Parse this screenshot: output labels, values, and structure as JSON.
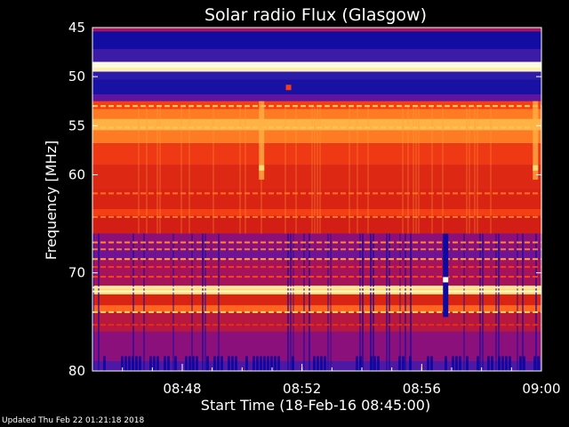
{
  "footer": {
    "updated": "Updated Thu Feb 22 01:21:18 2018"
  },
  "colors": {
    "background": "#000000",
    "axis": "#ffffff",
    "text": "#ffffff"
  },
  "chart_data": {
    "type": "heatmap",
    "title": "Solar radio Flux (Glasgow)",
    "xlabel": "Start Time (18-Feb-16 08:45:00)",
    "ylabel": "Frequency [MHz]",
    "x_range": [
      "08:45",
      "09:00"
    ],
    "x_ticks": [
      {
        "label": "08:48",
        "minutes": 3
      },
      {
        "label": "08:52",
        "minutes": 7
      },
      {
        "label": "08:56",
        "minutes": 11
      },
      {
        "label": "09:00",
        "minutes": 15
      }
    ],
    "y_range": [
      45,
      80
    ],
    "y_ticks": [
      45,
      50,
      55,
      60,
      70,
      80
    ],
    "colormap": [
      "#00009c",
      "#2d1eaa",
      "#6414a0",
      "#9b0f6e",
      "#d21e14",
      "#ff4614",
      "#ff8c28",
      "#ffd25a",
      "#ffffe6"
    ],
    "bands": [
      {
        "from": 45.0,
        "to": 45.4,
        "level": 0.4
      },
      {
        "from": 45.4,
        "to": 47.2,
        "level": 0.05
      },
      {
        "from": 47.2,
        "to": 48.5,
        "level": 0.16
      },
      {
        "from": 48.5,
        "to": 49.5,
        "level": 0.97
      },
      {
        "from": 49.5,
        "to": 50.3,
        "level": 0.12
      },
      {
        "from": 50.3,
        "to": 51.8,
        "level": 0.07
      },
      {
        "from": 51.8,
        "to": 52.5,
        "level": 0.24
      },
      {
        "from": 52.5,
        "to": 53.3,
        "level": 0.6
      },
      {
        "from": 53.3,
        "to": 54.3,
        "level": 0.72
      },
      {
        "from": 54.3,
        "to": 55.5,
        "level": 0.82
      },
      {
        "from": 55.5,
        "to": 56.8,
        "level": 0.72
      },
      {
        "from": 56.8,
        "to": 59.0,
        "level": 0.58
      },
      {
        "from": 59.0,
        "to": 61.5,
        "level": 0.53
      },
      {
        "from": 61.5,
        "to": 63.5,
        "level": 0.52
      },
      {
        "from": 63.5,
        "to": 64.2,
        "level": 0.6
      },
      {
        "from": 64.2,
        "to": 66.0,
        "level": 0.5
      },
      {
        "from": 66.0,
        "to": 67.5,
        "level": 0.34
      },
      {
        "from": 67.5,
        "to": 68.6,
        "level": 0.28
      },
      {
        "from": 68.6,
        "to": 71.3,
        "level": 0.4
      },
      {
        "from": 71.3,
        "to": 72.2,
        "level": 0.9
      },
      {
        "from": 72.2,
        "to": 73.3,
        "level": 0.52
      },
      {
        "from": 73.3,
        "to": 74.0,
        "level": 0.68
      },
      {
        "from": 74.0,
        "to": 76.0,
        "level": 0.44
      },
      {
        "from": 76.0,
        "to": 79.0,
        "level": 0.34
      },
      {
        "from": 79.0,
        "to": 80.0,
        "level": 0.2
      }
    ],
    "lines": [
      {
        "freq": 48.6,
        "level": 1.0
      },
      {
        "freq": 49.2,
        "level": 0.95
      },
      {
        "freq": 53.0,
        "level": 0.88
      },
      {
        "freq": 55.2,
        "level": 0.85
      },
      {
        "freq": 61.9,
        "level": 0.7
      },
      {
        "freq": 64.3,
        "level": 0.72
      },
      {
        "freq": 66.9,
        "level": 0.75
      },
      {
        "freq": 67.6,
        "level": 0.72
      },
      {
        "freq": 68.6,
        "level": 0.8
      },
      {
        "freq": 69.4,
        "level": 0.6
      },
      {
        "freq": 70.4,
        "level": 0.62
      },
      {
        "freq": 71.5,
        "level": 0.95
      },
      {
        "freq": 71.9,
        "level": 0.98
      },
      {
        "freq": 74.0,
        "level": 0.88
      },
      {
        "freq": 75.3,
        "level": 0.55
      }
    ],
    "features": [
      {
        "type": "vertical-streak",
        "minutes": 5.65,
        "from": 52.5,
        "to": 60.5,
        "level": 0.82
      },
      {
        "type": "vertical-streak",
        "minutes": 14.8,
        "from": 52.5,
        "to": 60.5,
        "level": 0.82
      },
      {
        "type": "vertical-dropout",
        "minutes": 11.8,
        "from": 66.0,
        "to": 74.5,
        "level": 0.04
      },
      {
        "type": "spot",
        "minutes": 5.65,
        "freq": 59.3,
        "level": 0.9
      },
      {
        "type": "spot",
        "minutes": 14.8,
        "freq": 59.3,
        "level": 0.9
      },
      {
        "type": "spot",
        "minutes": 11.8,
        "freq": 70.7,
        "level": 1.0
      },
      {
        "type": "spot",
        "minutes": 6.55,
        "freq": 51.1,
        "level": 0.6
      }
    ]
  }
}
